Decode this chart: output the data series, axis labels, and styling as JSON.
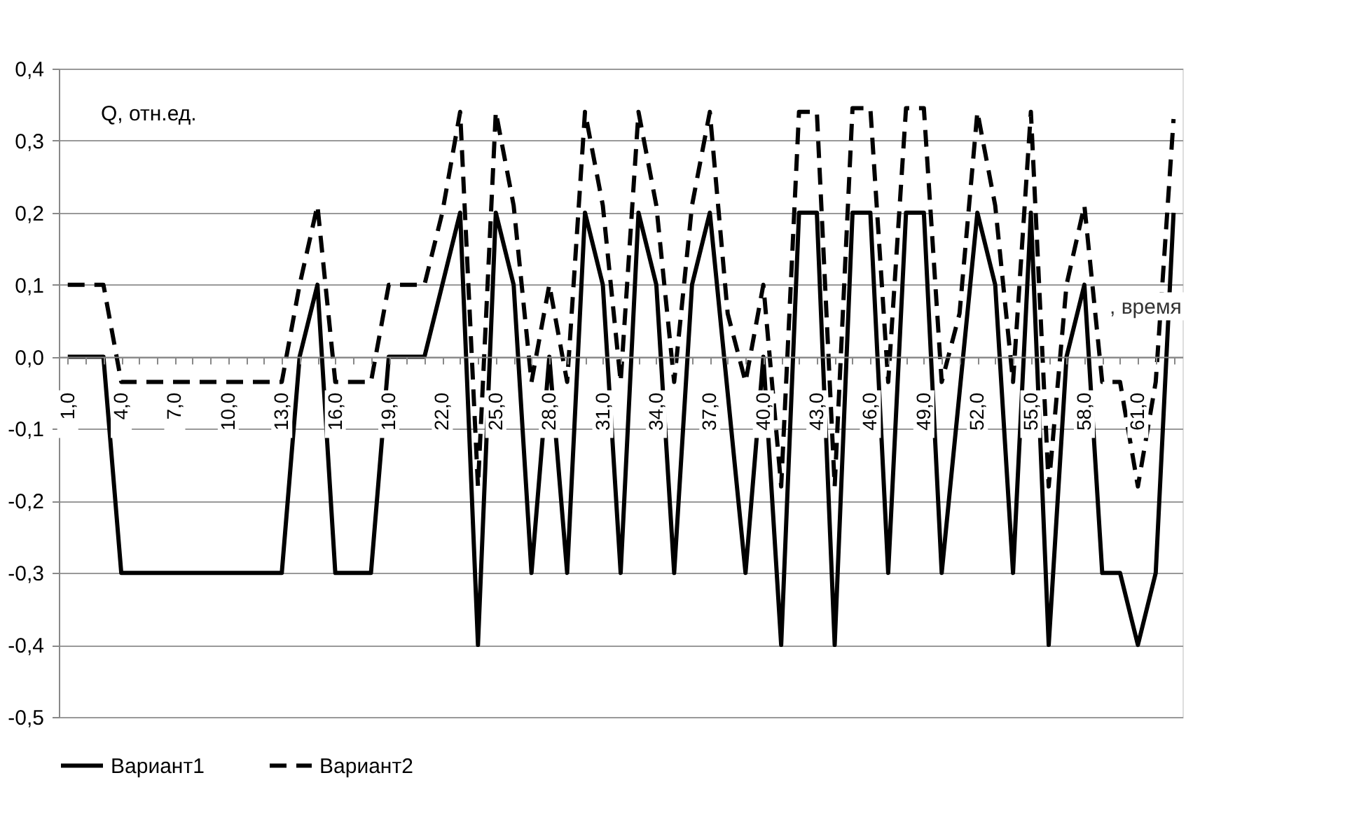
{
  "chart_data": {
    "type": "line",
    "ylabel": "Q, отн.ед.",
    "xlabel": ", время",
    "categories": [
      "1,0",
      null,
      null,
      "4,0",
      null,
      null,
      "7,0",
      null,
      null,
      "10,0",
      null,
      null,
      "13,0",
      null,
      null,
      "16,0",
      null,
      null,
      "19,0",
      null,
      null,
      "22,0",
      null,
      null,
      "25,0",
      null,
      null,
      "28,0",
      null,
      null,
      "31,0",
      null,
      null,
      "34,0",
      null,
      null,
      "37,0",
      null,
      null,
      "40,0",
      null,
      null,
      "43,0",
      null,
      null,
      "46,0",
      null,
      null,
      "49,0",
      null,
      null,
      "52,0",
      null,
      null,
      "55,0",
      null,
      null,
      "58,0",
      null,
      null,
      "61,0",
      null,
      null
    ],
    "series": [
      {
        "name": "Вариант1",
        "color": "#000000",
        "line_style": "solid",
        "values": [
          0,
          0,
          0,
          -0.3,
          -0.3,
          -0.3,
          -0.3,
          -0.3,
          -0.3,
          -0.3,
          -0.3,
          -0.3,
          -0.3,
          0,
          0.1,
          -0.3,
          -0.3,
          -0.3,
          0,
          0,
          0,
          0.1,
          0.2,
          -0.4,
          0.2,
          0.1,
          -0.3,
          0,
          -0.3,
          0.2,
          0.1,
          -0.3,
          0.2,
          0.1,
          -0.3,
          0.1,
          0.2,
          -0.05,
          -0.3,
          0,
          -0.4,
          0.2,
          0.2,
          -0.4,
          0.2,
          0.2,
          -0.3,
          0.2,
          0.2,
          -0.3,
          -0.05,
          0.2,
          0.1,
          -0.3,
          0.2,
          -0.4,
          0,
          0.1,
          -0.3,
          -0.3,
          -0.4,
          -0.3,
          0.2
        ]
      },
      {
        "name": "Вариант2",
        "color": "#000000",
        "line_style": "dashed",
        "values": [
          0.1,
          0.1,
          0.1,
          -0.035,
          -0.035,
          -0.035,
          -0.035,
          -0.035,
          -0.035,
          -0.035,
          -0.035,
          -0.035,
          -0.035,
          0.1,
          0.21,
          -0.035,
          -0.035,
          -0.035,
          0.1,
          0.1,
          0.1,
          0.2,
          0.34,
          -0.18,
          0.34,
          0.21,
          -0.035,
          0.1,
          -0.035,
          0.34,
          0.21,
          -0.035,
          0.34,
          0.21,
          -0.035,
          0.21,
          0.34,
          0.06,
          -0.035,
          0.1,
          -0.18,
          0.34,
          0.34,
          -0.18,
          0.345,
          0.345,
          -0.035,
          0.345,
          0.345,
          -0.035,
          0.06,
          0.34,
          0.21,
          -0.035,
          0.34,
          -0.18,
          0.1,
          0.21,
          -0.035,
          -0.035,
          -0.18,
          -0.035,
          0.33
        ]
      }
    ],
    "ylim": [
      -0.5,
      0.4
    ],
    "yticks": [
      {
        "value": 0.4,
        "label": "0,4"
      },
      {
        "value": 0.3,
        "label": "0,3"
      },
      {
        "value": 0.2,
        "label": "0,2"
      },
      {
        "value": 0.1,
        "label": "0,1"
      },
      {
        "value": 0,
        "label": "0,0"
      },
      {
        "value": -0.1,
        "label": "-0,1"
      },
      {
        "value": -0.2,
        "label": "-0,2"
      },
      {
        "value": -0.3,
        "label": "-0,3"
      },
      {
        "value": -0.4,
        "label": "-0,4"
      },
      {
        "value": -0.5,
        "label": "-0,5"
      }
    ],
    "grid": "y",
    "legend": "bottom"
  }
}
